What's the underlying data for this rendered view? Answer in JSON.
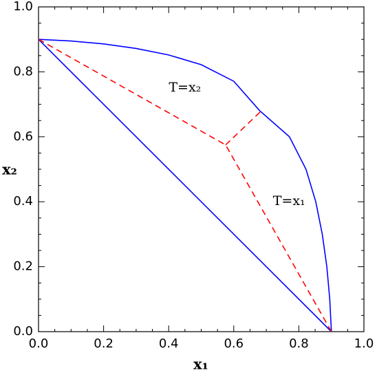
{
  "chart_data": {
    "type": "line",
    "x_label": "x₁",
    "y_label": "x₂",
    "xlim": [
      0,
      1
    ],
    "ylim": [
      0,
      1
    ],
    "xticks": [
      {
        "value": 0,
        "label": "0.0"
      },
      0.2,
      0.4,
      0.6,
      0.8,
      {
        "value": 1,
        "label": "1.0"
      }
    ],
    "yticks": [
      {
        "value": 0,
        "label": "0.0"
      },
      0.2,
      0.4,
      0.6,
      0.8,
      {
        "value": 1,
        "label": "1.0"
      }
    ],
    "xminorticks": [
      0.05,
      0.1,
      0.15,
      0.25,
      0.3,
      0.35,
      0.45,
      0.5,
      0.55,
      0.65,
      0.7,
      0.75,
      0.85,
      0.9,
      0.95
    ],
    "yminorticks": [
      0.05,
      0.1,
      0.15,
      0.25,
      0.3,
      0.35,
      0.45,
      0.5,
      0.55,
      0.65,
      0.7,
      0.75,
      0.85,
      0.9,
      0.95
    ],
    "grid": false,
    "series": [
      {
        "color": "#0000ff",
        "linestyle": "solid",
        "x": [
          0,
          0.9
        ],
        "values": [
          0.9,
          0
        ]
      },
      {
        "color": "#0000ff",
        "linestyle": "solid",
        "x": [
          0,
          0.1,
          0.2,
          0.3,
          0.4,
          0.5,
          0.6,
          0.68,
          0.771,
          0.822,
          0.852,
          0.872,
          0.886,
          0.895,
          0.9
        ],
        "values": [
          0.9,
          0.895,
          0.886,
          0.872,
          0.852,
          0.822,
          0.771,
          0.68,
          0.6,
          0.5,
          0.4,
          0.3,
          0.2,
          0.1,
          0
        ]
      },
      {
        "color": "#ff0000",
        "linestyle": "dashed",
        "x": [
          0,
          0.575,
          0.9
        ],
        "values": [
          0.9,
          0.575,
          0
        ]
      },
      {
        "color": "#ff0000",
        "linestyle": "dashed",
        "x": [
          0.575,
          0.685
        ],
        "values": [
          0.575,
          0.68
        ]
      }
    ],
    "annotations": [
      "T=x₂",
      "T=x₁"
    ]
  }
}
